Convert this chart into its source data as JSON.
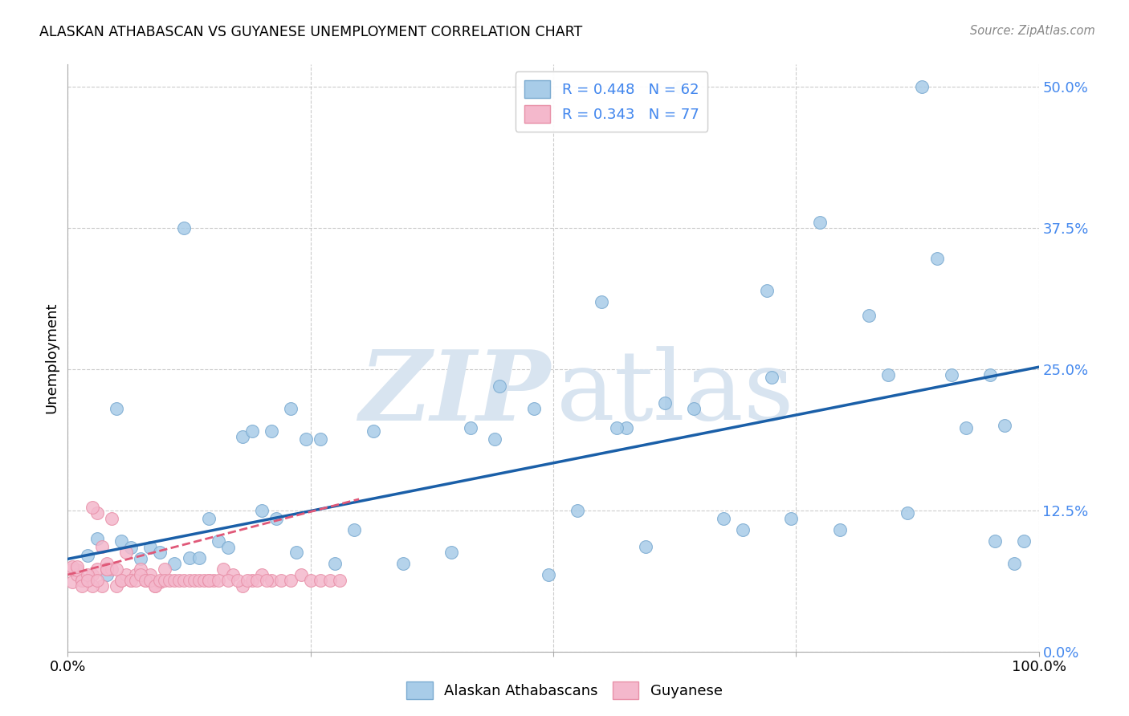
{
  "title": "ALASKAN ATHABASCAN VS GUYANESE UNEMPLOYMENT CORRELATION CHART",
  "source": "Source: ZipAtlas.com",
  "ylabel": "Unemployment",
  "legend_label1": "Alaskan Athabascans",
  "legend_label2": "Guyanese",
  "legend_R1": "R = 0.448",
  "legend_N1": "N = 62",
  "legend_R2": "R = 0.343",
  "legend_N2": "N = 77",
  "color_blue_fill": "#a8cce8",
  "color_pink_fill": "#f4b8cc",
  "color_blue_edge": "#7aaad0",
  "color_pink_edge": "#e890a8",
  "color_blue_line": "#1a5fa8",
  "color_pink_line": "#e05878",
  "color_label_blue": "#4488ee",
  "grid_color": "#cccccc",
  "blue_scatter_x": [
    0.63,
    0.88,
    0.12,
    0.05,
    0.23,
    0.18,
    0.19,
    0.21,
    0.315,
    0.48,
    0.55,
    0.615,
    0.645,
    0.72,
    0.775,
    0.845,
    0.91,
    0.95,
    0.965,
    0.02,
    0.03,
    0.04,
    0.055,
    0.065,
    0.075,
    0.085,
    0.095,
    0.11,
    0.125,
    0.135,
    0.145,
    0.155,
    0.165,
    0.2,
    0.215,
    0.235,
    0.26,
    0.275,
    0.295,
    0.345,
    0.395,
    0.415,
    0.44,
    0.495,
    0.525,
    0.575,
    0.595,
    0.675,
    0.695,
    0.745,
    0.795,
    0.825,
    0.865,
    0.895,
    0.925,
    0.955,
    0.975,
    0.985,
    0.245,
    0.445,
    0.565,
    0.725
  ],
  "blue_scatter_y": [
    0.5,
    0.5,
    0.375,
    0.215,
    0.215,
    0.19,
    0.195,
    0.195,
    0.195,
    0.215,
    0.31,
    0.22,
    0.215,
    0.32,
    0.38,
    0.245,
    0.245,
    0.245,
    0.2,
    0.085,
    0.1,
    0.068,
    0.098,
    0.092,
    0.082,
    0.092,
    0.088,
    0.078,
    0.083,
    0.083,
    0.118,
    0.098,
    0.092,
    0.125,
    0.118,
    0.088,
    0.188,
    0.078,
    0.108,
    0.078,
    0.088,
    0.198,
    0.188,
    0.068,
    0.125,
    0.198,
    0.093,
    0.118,
    0.108,
    0.118,
    0.108,
    0.298,
    0.123,
    0.348,
    0.198,
    0.098,
    0.078,
    0.098,
    0.188,
    0.235,
    0.198,
    0.243
  ],
  "pink_scatter_x": [
    0.005,
    0.01,
    0.015,
    0.02,
    0.025,
    0.03,
    0.035,
    0.04,
    0.005,
    0.01,
    0.015,
    0.02,
    0.025,
    0.03,
    0.04,
    0.045,
    0.05,
    0.055,
    0.06,
    0.065,
    0.07,
    0.075,
    0.08,
    0.085,
    0.09,
    0.095,
    0.1,
    0.005,
    0.01,
    0.015,
    0.02,
    0.025,
    0.03,
    0.035,
    0.04,
    0.045,
    0.05,
    0.055,
    0.06,
    0.065,
    0.07,
    0.075,
    0.08,
    0.085,
    0.09,
    0.095,
    0.1,
    0.105,
    0.11,
    0.115,
    0.12,
    0.125,
    0.13,
    0.135,
    0.14,
    0.145,
    0.15,
    0.16,
    0.17,
    0.18,
    0.19,
    0.2,
    0.21,
    0.22,
    0.23,
    0.24,
    0.25,
    0.26,
    0.27,
    0.28,
    0.145,
    0.155,
    0.165,
    0.175,
    0.185,
    0.195,
    0.205
  ],
  "pink_scatter_y": [
    0.062,
    0.068,
    0.063,
    0.063,
    0.068,
    0.073,
    0.058,
    0.078,
    0.073,
    0.072,
    0.063,
    0.068,
    0.058,
    0.123,
    0.073,
    0.073,
    0.058,
    0.063,
    0.068,
    0.063,
    0.068,
    0.073,
    0.063,
    0.068,
    0.058,
    0.062,
    0.073,
    0.075,
    0.075,
    0.058,
    0.063,
    0.128,
    0.063,
    0.093,
    0.073,
    0.118,
    0.073,
    0.063,
    0.088,
    0.063,
    0.063,
    0.068,
    0.063,
    0.063,
    0.058,
    0.063,
    0.063,
    0.063,
    0.063,
    0.063,
    0.063,
    0.063,
    0.063,
    0.063,
    0.063,
    0.063,
    0.063,
    0.073,
    0.068,
    0.058,
    0.063,
    0.068,
    0.063,
    0.063,
    0.063,
    0.068,
    0.063,
    0.063,
    0.063,
    0.063,
    0.063,
    0.063,
    0.063,
    0.063,
    0.063,
    0.063,
    0.063
  ],
  "blue_line_x": [
    0.0,
    1.0
  ],
  "blue_line_y": [
    0.082,
    0.252
  ],
  "pink_line_x": [
    0.0,
    0.3
  ],
  "pink_line_y": [
    0.068,
    0.135
  ],
  "xlim": [
    0.0,
    1.0
  ],
  "ylim": [
    0.0,
    0.52
  ],
  "ytick_values": [
    0.0,
    0.125,
    0.25,
    0.375,
    0.5
  ],
  "ytick_labels": [
    "0.0%",
    "12.5%",
    "25.0%",
    "37.5%",
    "50.0%"
  ],
  "xtick_positions": [
    0.0,
    0.25,
    0.5,
    0.75,
    1.0
  ],
  "xtick_labels_show": [
    "0.0%",
    "",
    "",
    "",
    "100.0%"
  ],
  "background": "#ffffff"
}
